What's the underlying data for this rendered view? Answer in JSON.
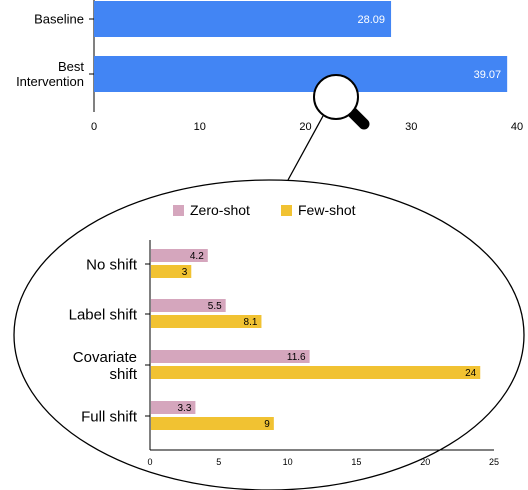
{
  "chart_data": [
    {
      "type": "bar",
      "orientation": "horizontal",
      "title": "",
      "categories": [
        "Baseline",
        "Best\nIntervention"
      ],
      "values": [
        28.09,
        39.07
      ],
      "value_labels": [
        "28.09",
        "39.07"
      ],
      "xlim": [
        0,
        40
      ],
      "xticks": [
        0,
        10,
        20,
        30,
        40
      ],
      "xlabel": "",
      "ylabel": "",
      "grid": false,
      "colors": {
        "bar": "#4285f4",
        "label": "#ffffff"
      }
    },
    {
      "type": "bar",
      "orientation": "horizontal",
      "title": "",
      "categories": [
        "No shift",
        "Label shift",
        "Covariate\nshift",
        "Full shift"
      ],
      "series": [
        {
          "name": "Zero-shot",
          "values": [
            4.2,
            5.5,
            11.6,
            3.3
          ],
          "value_labels": [
            "4.2",
            "5.5",
            "11.6",
            "3.3"
          ],
          "color": "#d5a6bd"
        },
        {
          "name": "Few-shot",
          "values": [
            3,
            8.1,
            24,
            9
          ],
          "value_labels": [
            "3",
            "8.1",
            "24",
            "9"
          ],
          "color": "#f1c232"
        }
      ],
      "xlim": [
        0,
        25
      ],
      "xticks": [
        0,
        5,
        10,
        15,
        20,
        25
      ],
      "xlabel": "",
      "ylabel": "",
      "grid": false,
      "legend": "top-center",
      "inset": "magnified view inside an ellipse, with a magnifying-glass icon"
    }
  ],
  "icons": {
    "zoom": "magnifying-glass-icon"
  }
}
